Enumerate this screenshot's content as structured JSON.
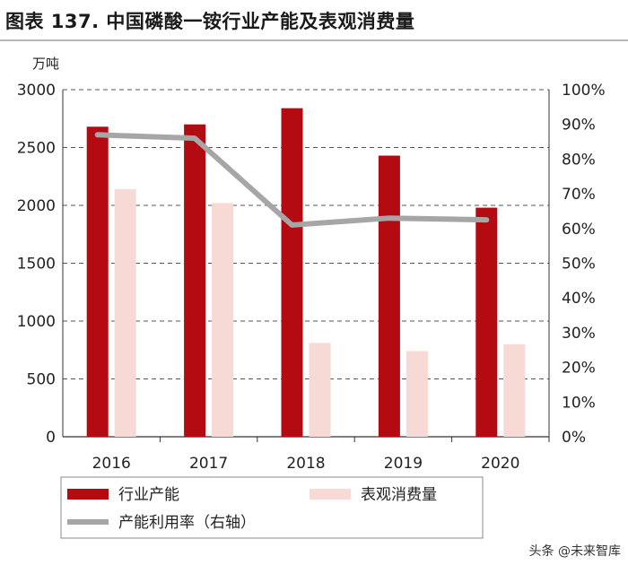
{
  "title": "图表 137. 中国磷酸一铵行业产能及表观消费量",
  "watermark": "头条 @未来智库",
  "colors": {
    "capacity": "#b40a12",
    "consumption": "#f7d9d5",
    "utilization": "#a6a6a6",
    "grid": "#555555"
  },
  "chart_data": {
    "type": "bar",
    "categories": [
      "2016",
      "2017",
      "2018",
      "2019",
      "2020"
    ],
    "ylabel_left": "万吨",
    "ylim_left": [
      0,
      3000
    ],
    "yticks_left": [
      "0",
      "500",
      "1000",
      "1500",
      "2000",
      "2500",
      "3000"
    ],
    "ylim_right": [
      0,
      100
    ],
    "yticks_right": [
      "0%",
      "10%",
      "20%",
      "30%",
      "40%",
      "50%",
      "60%",
      "70%",
      "80%",
      "90%",
      "100%"
    ],
    "grid": "horizontal dashed",
    "legend_position": "bottom",
    "series": [
      {
        "name": "行业产能",
        "kind": "bar",
        "axis": "left",
        "values": [
          2680,
          2700,
          2840,
          2430,
          1980
        ]
      },
      {
        "name": "表观消费量",
        "kind": "bar",
        "axis": "left",
        "values": [
          2140,
          2020,
          810,
          740,
          800
        ]
      },
      {
        "name": "产能利用率（右轴）",
        "kind": "line",
        "axis": "right",
        "values": [
          87,
          86,
          61,
          63,
          62.5
        ]
      }
    ]
  }
}
